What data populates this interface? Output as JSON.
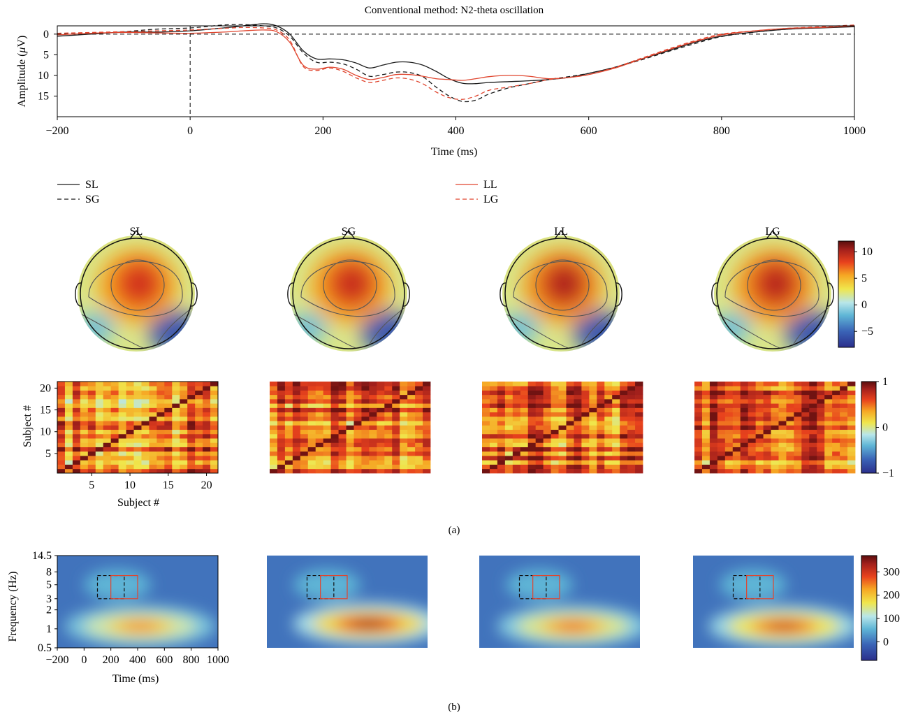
{
  "title": "Conventional method: N2-theta oscillation",
  "panel_labels": {
    "a": "(a)",
    "b": "(b)"
  },
  "colors": {
    "black_series": "#1a1a1a",
    "red_series": "#e0452e",
    "colormap": [
      "#2b2f8c",
      "#3a63b6",
      "#5fb5d6",
      "#b8e6ea",
      "#f0e64c",
      "#f6a623",
      "#e8421d",
      "#a3201c",
      "#5a0d0d"
    ]
  },
  "chart_data": [
    {
      "id": "erp",
      "type": "line",
      "title": "Conventional method: N2-theta oscillation",
      "xlabel": "Time (ms)",
      "ylabel": "Amplitude (μV)",
      "ylabel_prefix": "Amplitude (",
      "ylabel_mu": "μ",
      "ylabel_suffix": "V)",
      "xlim": [
        -200,
        1000
      ],
      "ylim": [
        -2,
        20
      ],
      "y_inverted": true,
      "xticks": [
        -200,
        0,
        200,
        400,
        600,
        800,
        1000
      ],
      "xtick_labels": [
        "−200",
        "0",
        "200",
        "400",
        "600",
        "800",
        "1000"
      ],
      "yticks": [
        0,
        5,
        10,
        15
      ],
      "zero_line": "dashed",
      "onset_line_x": 0,
      "legend_placement": "below",
      "series": [
        {
          "name": "SL",
          "color": "black",
          "dash": "solid",
          "x": [
            -200,
            -150,
            -100,
            -50,
            0,
            50,
            80,
            110,
            130,
            150,
            170,
            190,
            210,
            230,
            250,
            270,
            290,
            310,
            330,
            350,
            370,
            390,
            410,
            430,
            450,
            480,
            510,
            540,
            570,
            600,
            640,
            680,
            720,
            760,
            800,
            850,
            900,
            950,
            1000
          ],
          "y": [
            0.5,
            0.0,
            -0.5,
            -0.5,
            -0.8,
            -1.5,
            -2.0,
            -2.5,
            -2.0,
            0.0,
            4.0,
            6.0,
            6.0,
            6.2,
            7.0,
            8.2,
            7.5,
            6.8,
            6.8,
            7.5,
            9.0,
            10.8,
            11.9,
            12.0,
            11.7,
            11.5,
            11.3,
            11.0,
            10.5,
            9.5,
            8.0,
            6.0,
            4.0,
            2.0,
            0.5,
            -0.5,
            -1.2,
            -1.5,
            -1.8
          ]
        },
        {
          "name": "SG",
          "color": "black",
          "dash": "dashed",
          "x": [
            -200,
            -150,
            -100,
            -50,
            0,
            50,
            80,
            110,
            130,
            150,
            170,
            190,
            210,
            230,
            250,
            270,
            290,
            310,
            330,
            350,
            370,
            390,
            410,
            430,
            450,
            480,
            510,
            540,
            570,
            600,
            640,
            680,
            720,
            760,
            800,
            850,
            900,
            950,
            1000
          ],
          "y": [
            0.0,
            -0.2,
            -0.6,
            -1.2,
            -1.5,
            -2.2,
            -2.3,
            -2.0,
            -1.5,
            0.5,
            4.5,
            6.8,
            6.8,
            7.2,
            8.5,
            10.2,
            9.8,
            9.2,
            9.3,
            10.3,
            12.8,
            15.0,
            16.3,
            16.0,
            14.5,
            13.0,
            12.0,
            11.0,
            10.3,
            9.5,
            8.0,
            6.2,
            4.2,
            2.3,
            0.6,
            -0.5,
            -1.2,
            -1.6,
            -2.0
          ]
        },
        {
          "name": "LL",
          "color": "red",
          "dash": "solid",
          "x": [
            -200,
            -150,
            -100,
            -50,
            0,
            50,
            80,
            110,
            130,
            150,
            170,
            190,
            210,
            230,
            250,
            270,
            290,
            310,
            330,
            350,
            370,
            390,
            410,
            430,
            450,
            480,
            510,
            540,
            570,
            600,
            640,
            680,
            720,
            760,
            800,
            850,
            900,
            950,
            1000
          ],
          "y": [
            0.2,
            -0.2,
            -0.4,
            -0.3,
            -0.2,
            -0.5,
            -0.8,
            -1.0,
            -0.6,
            2.0,
            7.5,
            8.5,
            8.0,
            8.5,
            10.0,
            11.0,
            10.5,
            9.8,
            9.8,
            10.2,
            10.8,
            11.0,
            11.2,
            10.8,
            10.3,
            10.0,
            10.2,
            10.8,
            10.5,
            9.8,
            8.2,
            6.0,
            3.8,
            1.8,
            0.2,
            -0.8,
            -1.4,
            -1.6,
            -2.0
          ]
        },
        {
          "name": "LG",
          "color": "red",
          "dash": "dashed",
          "x": [
            -200,
            -150,
            -100,
            -50,
            0,
            50,
            80,
            110,
            130,
            150,
            170,
            190,
            210,
            230,
            250,
            270,
            290,
            310,
            330,
            350,
            370,
            390,
            410,
            430,
            450,
            480,
            510,
            540,
            570,
            600,
            640,
            680,
            720,
            760,
            800,
            850,
            900,
            950,
            1000
          ],
          "y": [
            -0.2,
            -0.4,
            -0.6,
            -0.8,
            -1.0,
            -1.4,
            -1.6,
            -1.5,
            -1.0,
            1.5,
            7.8,
            8.8,
            8.2,
            9.0,
            10.6,
            11.7,
            11.2,
            10.6,
            10.9,
            12.0,
            14.0,
            15.4,
            15.8,
            15.0,
            13.6,
            12.8,
            12.0,
            11.0,
            10.5,
            9.8,
            8.0,
            5.8,
            3.6,
            1.6,
            0.0,
            -0.8,
            -1.4,
            -1.8,
            -2.2
          ]
        }
      ]
    },
    {
      "id": "topomaps",
      "type": "heatmap",
      "titles": [
        "SL",
        "SG",
        "LL",
        "LG"
      ],
      "peak_intensity": [
        0.72,
        0.78,
        0.92,
        0.88
      ],
      "colorbar_ticks": [
        10,
        5,
        0,
        -5
      ],
      "colorbar_tick_labels": [
        "10",
        "5",
        "0",
        "−5"
      ],
      "colorbar_range": [
        -8,
        12
      ]
    },
    {
      "id": "similarity_matrices",
      "type": "heatmap",
      "xlabel": "Subject #",
      "ylabel": "Subject #",
      "n_subjects": 21,
      "xticks": [
        5,
        10,
        15,
        20
      ],
      "yticks": [
        5,
        10,
        15,
        20
      ],
      "clim": [
        -1,
        1
      ],
      "colorbar_ticks": [
        1,
        0,
        -1
      ],
      "colorbar_tick_labels": [
        "1",
        "0",
        "−1"
      ],
      "diagonal": 1,
      "mean_offdiag": [
        0.45,
        0.55,
        0.55,
        0.58
      ]
    },
    {
      "id": "time_frequency",
      "type": "heatmap",
      "xlabel": "Time (ms)",
      "ylabel": "Frequency (Hz)",
      "xlim": [
        -200,
        1000
      ],
      "xticks": [
        -200,
        0,
        200,
        400,
        600,
        800,
        1000
      ],
      "xtick_labels": [
        "−200",
        "0",
        "200",
        "400",
        "600",
        "800",
        "1000"
      ],
      "yticks": [
        0.5,
        1,
        2,
        3,
        5,
        8,
        14.5
      ],
      "ytick_labels": [
        "0.5",
        "1",
        "2",
        "3",
        "5",
        "8",
        "14.5"
      ],
      "y_scale": "log",
      "peak_time_ms": [
        420,
        560,
        500,
        480
      ],
      "peak_freq_hz": [
        1.1,
        1.2,
        1.1,
        1.1
      ],
      "peak_power": [
        240,
        330,
        260,
        300
      ],
      "windows": [
        {
          "style": "black-dashed",
          "t": [
            100,
            300
          ],
          "f": [
            3,
            7
          ]
        },
        {
          "style": "red-solid",
          "t": [
            200,
            400
          ],
          "f": [
            3,
            7
          ]
        }
      ],
      "colorbar_ticks": [
        300,
        200,
        100,
        0
      ],
      "colorbar_range": [
        -80,
        370
      ]
    }
  ]
}
